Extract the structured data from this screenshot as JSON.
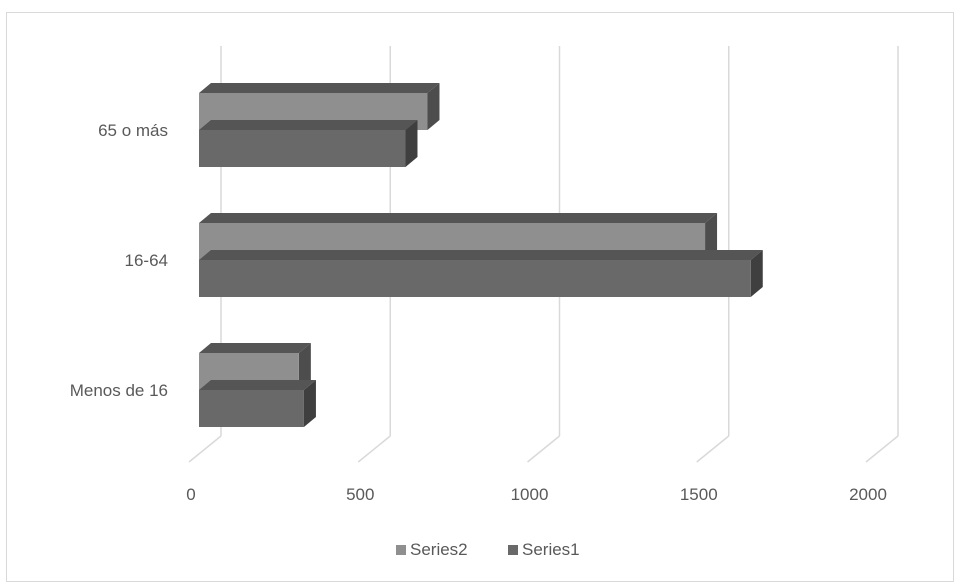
{
  "chart_data": {
    "type": "bar",
    "orientation": "horizontal",
    "style": "3d-clustered",
    "categories": [
      "Menos de 16",
      "16-64",
      "65 o más"
    ],
    "series": [
      {
        "name": "Series1",
        "values": [
          310,
          1630,
          610
        ],
        "color": "#696969"
      },
      {
        "name": "Series2",
        "values": [
          295,
          1495,
          675
        ],
        "color": "#8f8f8f"
      }
    ],
    "xlim": [
      0,
      2000
    ],
    "xticks": [
      0,
      500,
      1000,
      1500,
      2000
    ],
    "grid": true,
    "legend": "bottom",
    "colors": {
      "gridline": "#d9d9d9",
      "border": "#d9d9d9",
      "text": "#595959",
      "series1_side": "#3f3f3f",
      "series2_side": "#4d4d4d",
      "top_face": "#555555"
    }
  }
}
